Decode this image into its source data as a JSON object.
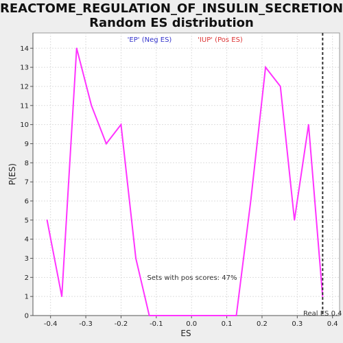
{
  "chart_data": {
    "type": "line",
    "title_line1": "REACTOME_REGULATION_OF_INSULIN_SECRETION:",
    "title_line2": "Random ES distribution",
    "xlabel": "ES",
    "ylabel": "P(ES)",
    "xlim": [
      -0.45,
      0.42
    ],
    "ylim": [
      0,
      14.8
    ],
    "x_ticks": [
      -0.4,
      -0.3,
      -0.2,
      -0.1,
      0.0,
      0.1,
      0.2,
      0.3,
      0.4
    ],
    "x_tick_labels": [
      "-0.4",
      "-0.3",
      "-0.2",
      "-0.1",
      "0.0",
      "0.1",
      "0.2",
      "0.3",
      "0.4"
    ],
    "y_ticks": [
      0,
      1,
      2,
      3,
      4,
      5,
      6,
      7,
      8,
      9,
      10,
      11,
      12,
      13,
      14
    ],
    "y_tick_labels": [
      "0",
      "1",
      "2",
      "3",
      "4",
      "5",
      "6",
      "7",
      "8",
      "9",
      "10",
      "11",
      "12",
      "13",
      "14"
    ],
    "grid": true,
    "legend": {
      "placement": "top-center",
      "entries": [
        {
          "label": "'EP' (Neg ES)",
          "color": "#3333cc"
        },
        {
          "label": "'IUP' (Pos ES)",
          "color": "#dd3333"
        }
      ]
    },
    "series": [
      {
        "color": "#ff33ff",
        "x": [
          -0.41,
          -0.368,
          -0.326,
          -0.284,
          -0.242,
          -0.2,
          -0.158,
          -0.12,
          -0.08,
          -0.04,
          0.0,
          0.04,
          0.08,
          0.127,
          0.168,
          0.21,
          0.252,
          0.292,
          0.332,
          0.372
        ],
        "y": [
          5,
          1,
          14,
          11,
          9,
          10,
          3,
          0,
          0,
          0,
          0,
          0,
          0,
          0,
          6,
          13,
          12,
          5,
          10,
          1
        ]
      }
    ],
    "real_es": {
      "x": 0.372,
      "label": "Real ES 0.4"
    },
    "annotation": "Sets with pos scores: 47%"
  }
}
